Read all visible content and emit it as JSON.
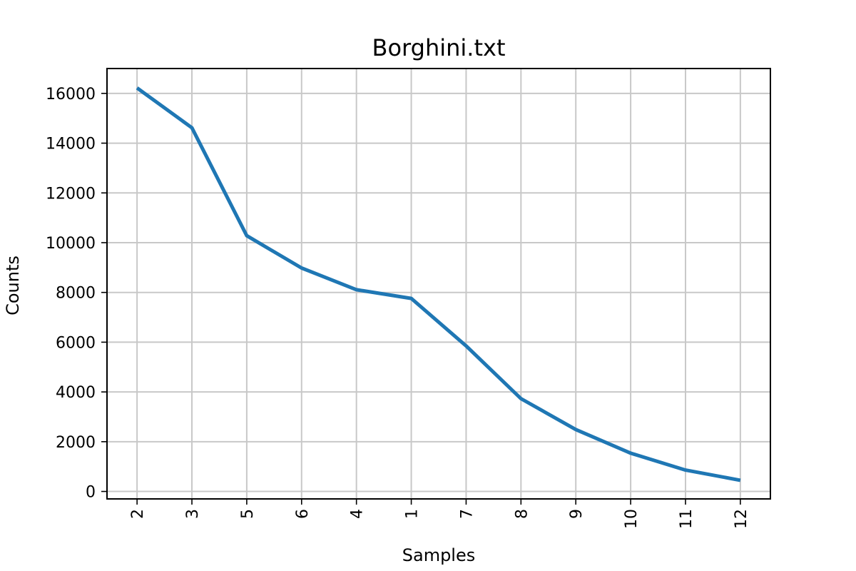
{
  "chart_data": {
    "type": "line",
    "title": "Borghini.txt",
    "xlabel": "Samples",
    "ylabel": "Counts",
    "categories": [
      "2",
      "3",
      "5",
      "6",
      "4",
      "1",
      "7",
      "8",
      "9",
      "10",
      "11",
      "12"
    ],
    "series": [
      {
        "values": [
          16220,
          14620,
          10280,
          8980,
          8110,
          7760,
          5850,
          3730,
          2490,
          1540,
          860,
          450
        ]
      }
    ],
    "ylim": [
      -300,
      17000
    ],
    "yticks": [
      0,
      2000,
      4000,
      6000,
      8000,
      10000,
      12000,
      14000,
      16000
    ],
    "ytick_labels": [
      "0",
      "2000",
      "4000",
      "6000",
      "8000",
      "10000",
      "12000",
      "14000",
      "16000"
    ],
    "grid": true,
    "line_color": "#1f77b4"
  }
}
